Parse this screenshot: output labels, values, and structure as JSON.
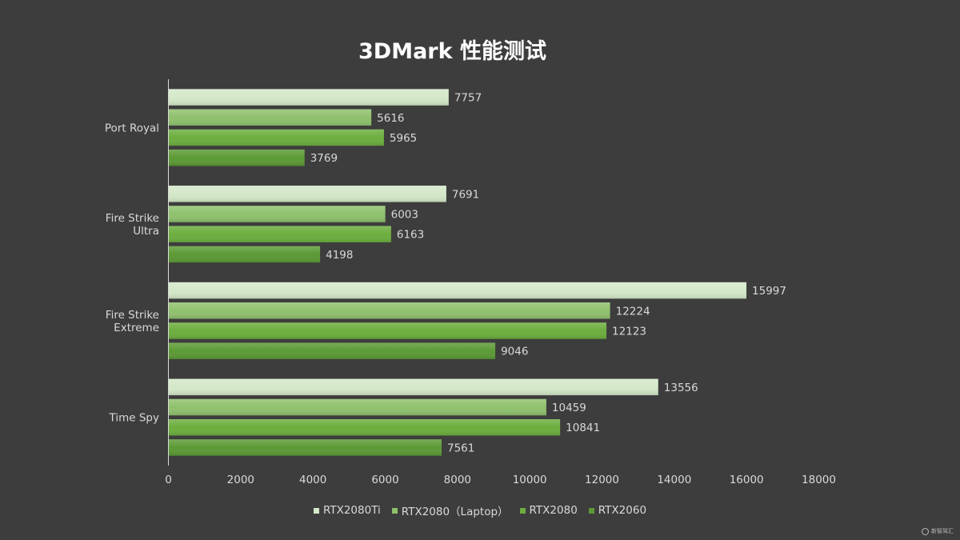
{
  "chart_data": {
    "type": "bar",
    "orientation": "horizontal",
    "title": "3DMark 性能测试",
    "categories": [
      "Port Royal",
      "Fire Strike Ultra",
      "Fire Strike Extreme",
      "Time Spy"
    ],
    "category_lines": [
      [
        "Port Royal"
      ],
      [
        "Fire Strike",
        "Ultra"
      ],
      [
        "Fire Strike",
        "Extreme"
      ],
      [
        "Time Spy"
      ]
    ],
    "series": [
      {
        "name": "RTX2080Ti",
        "color": "#d4e8c8",
        "values": [
          7757,
          7691,
          15997,
          13556
        ]
      },
      {
        "name": "RTX2080（Laptop）",
        "color": "#8fc16d",
        "values": [
          5616,
          6003,
          12224,
          10459
        ]
      },
      {
        "name": "RTX2080",
        "color": "#6cae3e",
        "values": [
          5965,
          6163,
          12123,
          10841
        ]
      },
      {
        "name": "RTX2060",
        "color": "#5c9a35",
        "values": [
          3769,
          4198,
          9046,
          7561
        ]
      }
    ],
    "xlim": [
      0,
      18000
    ],
    "xticks": [
      0,
      2000,
      4000,
      6000,
      8000,
      10000,
      12000,
      14000,
      16000,
      18000
    ],
    "grid": false,
    "legend_position": "bottom",
    "xlabel": "",
    "ylabel": ""
  },
  "watermark": "新智驾汇"
}
